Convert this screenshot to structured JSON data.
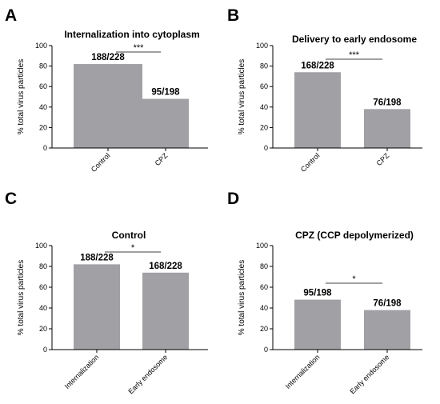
{
  "colors": {
    "bar": "#a0a0a5",
    "axis": "#000000"
  },
  "chart_data": [
    {
      "panel": "A",
      "type": "bar",
      "title": "Internalization into cytoplasm",
      "ylabel": "% total virus particles",
      "xlabel": "",
      "ylim": [
        0,
        100
      ],
      "yticks": [
        0,
        20,
        40,
        60,
        80,
        100
      ],
      "categories": [
        "Control",
        "CPZ"
      ],
      "values": [
        82,
        48
      ],
      "data_labels": [
        "188/228",
        "95/198"
      ],
      "significance": "***",
      "grid": false,
      "legend": "none",
      "tilt_labels": true
    },
    {
      "panel": "B",
      "type": "bar",
      "title": "Delivery to early endosome",
      "ylabel": "% total virus particles",
      "xlabel": "",
      "ylim": [
        0,
        100
      ],
      "yticks": [
        0,
        20,
        40,
        60,
        80,
        100
      ],
      "categories": [
        "Control",
        "CPZ"
      ],
      "values": [
        74,
        38
      ],
      "data_labels": [
        "168/228",
        "76/198"
      ],
      "significance": "***",
      "grid": false,
      "legend": "none",
      "tilt_labels": true
    },
    {
      "panel": "C",
      "type": "bar",
      "title": "Control",
      "ylabel": "% total virus particles",
      "xlabel": "",
      "ylim": [
        0,
        100
      ],
      "yticks": [
        0,
        20,
        40,
        60,
        80,
        100
      ],
      "categories": [
        "Internalization",
        "Early endosome"
      ],
      "values": [
        82,
        74
      ],
      "data_labels": [
        "188/228",
        "168/228"
      ],
      "significance": "*",
      "grid": false,
      "legend": "none",
      "tilt_labels": true
    },
    {
      "panel": "D",
      "type": "bar",
      "title": "CPZ (CCP depolymerized)",
      "ylabel": "% total virus particles",
      "xlabel": "",
      "ylim": [
        0,
        100
      ],
      "yticks": [
        0,
        20,
        40,
        60,
        80,
        100
      ],
      "categories": [
        "Internalization",
        "Early endosome"
      ],
      "values": [
        48,
        38
      ],
      "data_labels": [
        "95/198",
        "76/198"
      ],
      "significance": "*",
      "grid": false,
      "legend": "none",
      "tilt_labels": true
    }
  ]
}
